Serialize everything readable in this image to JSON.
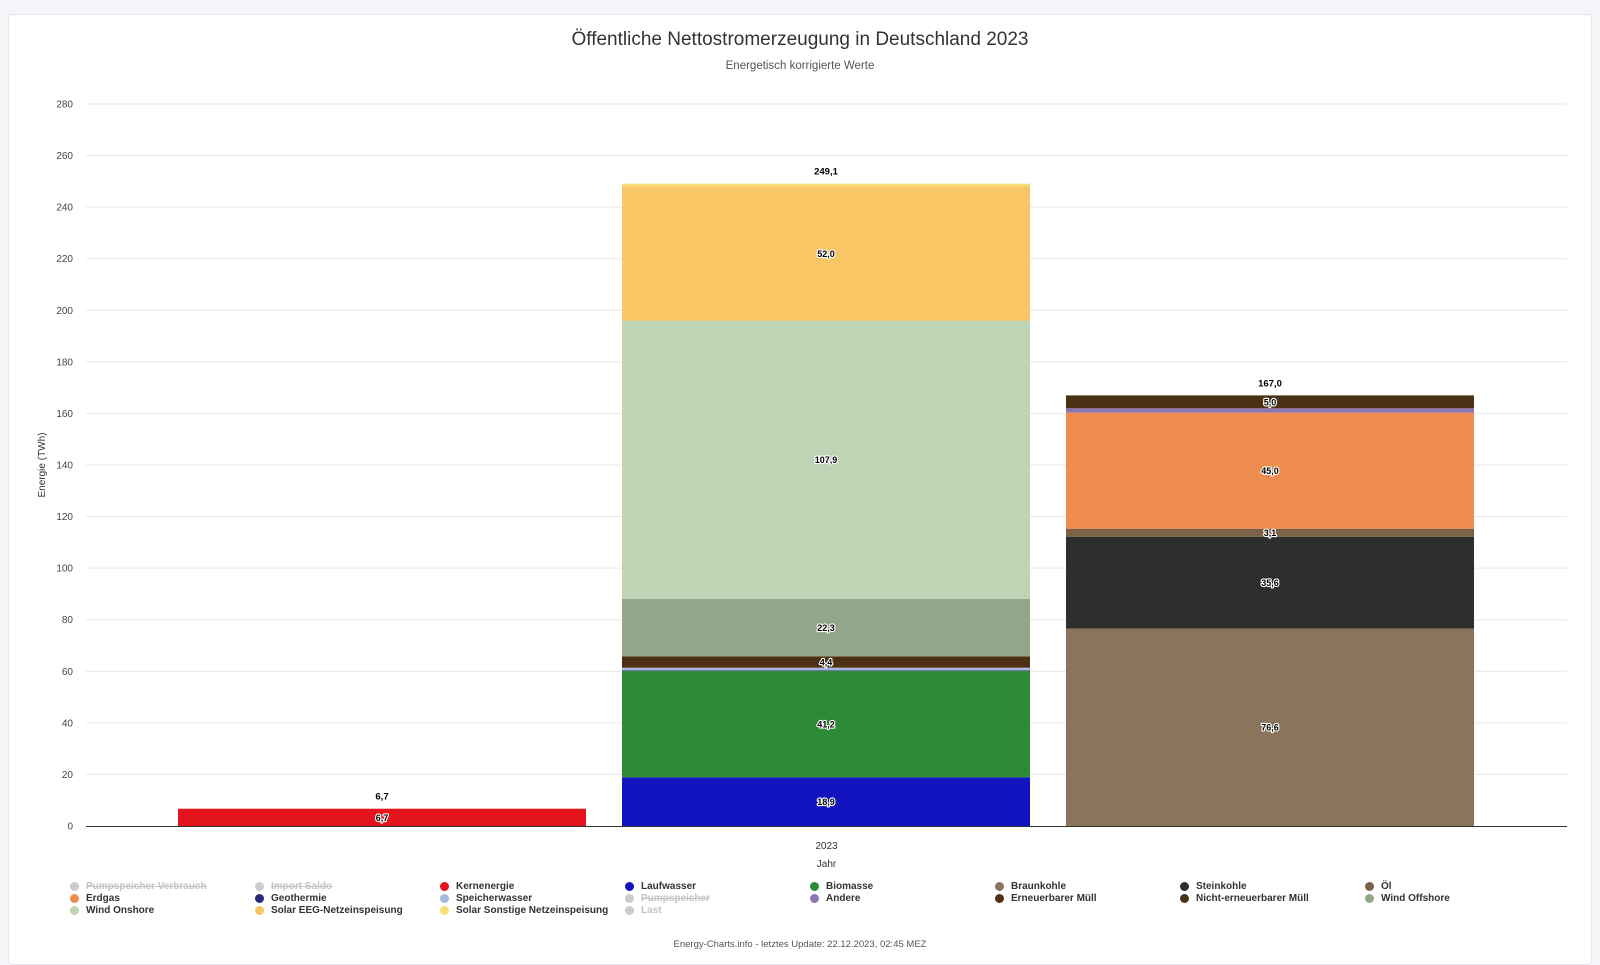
{
  "title": "Öffentliche Nettostromerzeugung in Deutschland 2023",
  "subtitle": "Energetisch korrigierte Werte",
  "credits": "Energy-Charts.info - letztes Update: 22.12.2023, 02:45 MEZ",
  "chart_data": {
    "type": "bar",
    "stacked": true,
    "xlabel": "Jahr",
    "ylabel": "Energie (TWh)",
    "x_tick_label": "2023",
    "ylim": [
      0,
      280
    ],
    "yticks": [
      0,
      20,
      40,
      60,
      80,
      100,
      120,
      140,
      160,
      180,
      200,
      220,
      240,
      260,
      280
    ],
    "grid": true,
    "legend_position": "bottom",
    "bars": [
      {
        "total_label": "6,7",
        "total": 6.7,
        "segments": [
          {
            "series": "Kernenergie",
            "value": 6.7,
            "label": "6,7",
            "color": "#e3141c"
          }
        ]
      },
      {
        "total_label": "249,1",
        "total": 249.1,
        "segments": [
          {
            "series": "Laufwasser",
            "value": 18.9,
            "label": "18,9",
            "color": "#1214c0"
          },
          {
            "series": "Biomasse",
            "value": 41.2,
            "label": "41,2",
            "color": "#2e8b35"
          },
          {
            "series": "Geothermie",
            "value": 0.2,
            "label": "",
            "color": "#2a2b7a"
          },
          {
            "series": "Speicherwasser",
            "value": 1.1,
            "label": "",
            "color": "#a7b9dc"
          },
          {
            "series": "Erneuerbarer Müll",
            "value": 4.4,
            "label": "4,4",
            "color": "#4f3014"
          },
          {
            "series": "Wind Offshore",
            "value": 22.3,
            "label": "22,3",
            "color": "#94a68a"
          },
          {
            "series": "Wind Onshore",
            "value": 107.9,
            "label": "107,9",
            "color": "#bfd3b5"
          },
          {
            "series": "Solar EEG-Netzeinspeisung",
            "value": 52.0,
            "label": "52,0",
            "color": "#f8c664"
          },
          {
            "series": "Solar Sonstige Netzeinspeisung",
            "value": 1.1,
            "label": "",
            "color": "#f9dd7a"
          }
        ]
      },
      {
        "total_label": "167,0",
        "total": 167.0,
        "segments": [
          {
            "series": "Braunkohle",
            "value": 76.6,
            "label": "76,6",
            "color": "#8a755c"
          },
          {
            "series": "Steinkohle",
            "value": 35.6,
            "label": "35,6",
            "color": "#2d2f2e"
          },
          {
            "series": "Öl",
            "value": 3.1,
            "label": "3,1",
            "color": "#7b6247"
          },
          {
            "series": "Erdgas",
            "value": 45.0,
            "label": "45,0",
            "color": "#ee8c4e"
          },
          {
            "series": "Andere",
            "value": 1.7,
            "label": "",
            "color": "#8d74b3"
          },
          {
            "series": "Nicht-erneuerbarer Müll",
            "value": 5.0,
            "label": "5,0",
            "color": "#4b3216"
          }
        ]
      }
    ]
  },
  "legend": [
    {
      "label": "Pumpspeicher Verbrauch",
      "color": "#cccccc",
      "state": "hidden"
    },
    {
      "label": "Import Saldo",
      "color": "#cccccc",
      "state": "hidden"
    },
    {
      "label": "Kernenergie",
      "color": "#e3141c",
      "state": "visible"
    },
    {
      "label": "Laufwasser",
      "color": "#1214c0",
      "state": "visible"
    },
    {
      "label": "Biomasse",
      "color": "#2e8b35",
      "state": "visible"
    },
    {
      "label": "Braunkohle",
      "color": "#8a755c",
      "state": "visible"
    },
    {
      "label": "Steinkohle",
      "color": "#2d2f2e",
      "state": "visible"
    },
    {
      "label": "Öl",
      "color": "#7b6247",
      "state": "visible"
    },
    {
      "label": "Erdgas",
      "color": "#ee8c4e",
      "state": "visible"
    },
    {
      "label": "Geothermie",
      "color": "#2a2b7a",
      "state": "visible"
    },
    {
      "label": "Speicherwasser",
      "color": "#a7b9dc",
      "state": "visible"
    },
    {
      "label": "Pumpspeicher",
      "color": "#cccccc",
      "state": "hidden"
    },
    {
      "label": "Andere",
      "color": "#8d74b3",
      "state": "visible"
    },
    {
      "label": "Erneuerbarer Müll",
      "color": "#4f3014",
      "state": "visible"
    },
    {
      "label": "Nicht-erneuerbarer Müll",
      "color": "#4b3216",
      "state": "visible"
    },
    {
      "label": "Wind Offshore",
      "color": "#94a68a",
      "state": "visible"
    },
    {
      "label": "Wind Onshore",
      "color": "#bfd3b5",
      "state": "visible"
    },
    {
      "label": "Solar EEG-Netzeinspeisung",
      "color": "#f8c664",
      "state": "visible"
    },
    {
      "label": "Solar Sonstige Netzeinspeisung",
      "color": "#f9dd7a",
      "state": "visible"
    },
    {
      "label": "Last",
      "color": "#cccccc",
      "state": "hidden-plain"
    }
  ]
}
